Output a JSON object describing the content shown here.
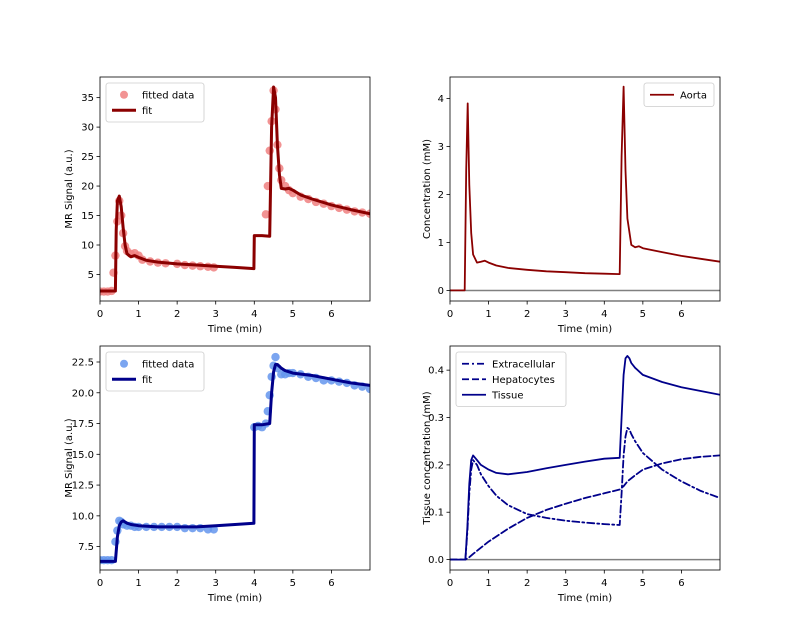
{
  "colors": {
    "aorta": "#8b0000",
    "signal_top_data": "#f08080",
    "signal_top_fit": "#8b0000",
    "signal_bottom_data": "#6495ed",
    "signal_bottom_fit": "#00008b",
    "tissue": "#00008b",
    "zero_line": "#808080",
    "axes": "#000000"
  },
  "chart_data": [
    {
      "type": "scatter",
      "panel": "top-left",
      "xlabel": "Time (min)",
      "ylabel": "MR Signal (a.u.)",
      "xlim": [
        0,
        7.0
      ],
      "ylim": [
        0.5,
        38.5
      ],
      "xticks": [
        0,
        1,
        2,
        3,
        4,
        5,
        6
      ],
      "yticks": [
        5,
        10,
        15,
        20,
        25,
        30,
        35
      ],
      "ytick_labels": [
        "5",
        "10",
        "15",
        "20",
        "25",
        "30",
        "35"
      ],
      "legend": "upper-left",
      "series": [
        {
          "name": "fitted data",
          "kind": "points",
          "color": "#f08080",
          "x": [
            0.0,
            0.1,
            0.2,
            0.3,
            0.35,
            0.4,
            0.45,
            0.5,
            0.55,
            0.6,
            0.65,
            0.7,
            0.8,
            0.9,
            1.0,
            1.1,
            1.3,
            1.5,
            1.7,
            2.0,
            2.2,
            2.4,
            2.6,
            2.8,
            2.95,
            4.3,
            4.35,
            4.4,
            4.45,
            4.5,
            4.55,
            4.6,
            4.65,
            4.7,
            4.8,
            4.9,
            5.0,
            5.2,
            5.4,
            5.6,
            5.8,
            6.0,
            6.2,
            6.4,
            6.6,
            6.8,
            7.0
          ],
          "y": [
            2.1,
            2.1,
            2.1,
            2.2,
            5.3,
            8.2,
            14.0,
            17.5,
            15.0,
            12.0,
            9.8,
            9.0,
            8.5,
            8.6,
            8.2,
            7.5,
            7.2,
            7.0,
            6.9,
            6.8,
            6.6,
            6.5,
            6.4,
            6.3,
            6.2,
            15.2,
            20.0,
            26.0,
            31.0,
            36.2,
            33.0,
            27.0,
            23.0,
            21.0,
            20.0,
            19.3,
            18.8,
            18.2,
            17.8,
            17.3,
            17.0,
            16.6,
            16.3,
            16.0,
            15.7,
            15.5,
            15.3
          ]
        },
        {
          "name": "fit",
          "kind": "line",
          "color": "#8b0000",
          "x": [
            0.0,
            0.4,
            0.42,
            0.45,
            0.5,
            0.55,
            0.6,
            0.65,
            0.7,
            0.8,
            0.9,
            1.0,
            1.2,
            1.5,
            2.0,
            2.5,
            3.0,
            3.5,
            3.99,
            4.0,
            4.2,
            4.4,
            4.45,
            4.5,
            4.55,
            4.6,
            4.65,
            4.7,
            4.8,
            4.9,
            5.0,
            5.2,
            5.5,
            6.0,
            6.5,
            7.0
          ],
          "y": [
            2.2,
            2.2,
            12.5,
            17.5,
            18.3,
            16.5,
            13.0,
            10.0,
            8.5,
            8.0,
            8.2,
            7.9,
            7.4,
            7.1,
            6.8,
            6.6,
            6.4,
            6.2,
            6.0,
            11.6,
            11.6,
            11.5,
            30.0,
            36.8,
            35.0,
            27.0,
            22.0,
            19.6,
            19.5,
            19.6,
            19.3,
            18.5,
            17.8,
            16.8,
            16.0,
            15.3
          ]
        }
      ]
    },
    {
      "type": "line",
      "panel": "top-right",
      "xlabel": "Time (min)",
      "ylabel": "Concentration (mM)",
      "xlim": [
        0,
        7.0
      ],
      "ylim": [
        -0.22,
        4.45
      ],
      "xticks": [
        0,
        1,
        2,
        3,
        4,
        5,
        6
      ],
      "yticks": [
        0,
        1,
        2,
        3,
        4
      ],
      "ytick_labels": [
        "0",
        "1",
        "2",
        "3",
        "4"
      ],
      "legend": "upper-right",
      "zero_line": true,
      "series": [
        {
          "name": "Aorta",
          "kind": "line",
          "color": "#8b0000",
          "x": [
            0.0,
            0.38,
            0.42,
            0.46,
            0.5,
            0.55,
            0.6,
            0.7,
            0.8,
            0.9,
            1.0,
            1.2,
            1.5,
            2.0,
            2.5,
            3.0,
            3.5,
            4.0,
            4.4,
            4.45,
            4.5,
            4.55,
            4.6,
            4.7,
            4.8,
            4.9,
            5.0,
            5.5,
            6.0,
            6.5,
            7.0
          ],
          "y": [
            0.0,
            0.0,
            2.5,
            3.9,
            2.2,
            1.2,
            0.75,
            0.58,
            0.6,
            0.62,
            0.58,
            0.52,
            0.47,
            0.43,
            0.4,
            0.38,
            0.36,
            0.35,
            0.34,
            2.8,
            4.25,
            2.5,
            1.5,
            0.95,
            0.9,
            0.92,
            0.88,
            0.8,
            0.72,
            0.66,
            0.6
          ]
        }
      ]
    },
    {
      "type": "scatter",
      "panel": "bottom-left",
      "xlabel": "Time (min)",
      "ylabel": "MR Signal (a.u.)",
      "xlim": [
        0,
        7.0
      ],
      "ylim": [
        5.6,
        23.8
      ],
      "xticks": [
        0,
        1,
        2,
        3,
        4,
        5,
        6
      ],
      "yticks": [
        7.5,
        10.0,
        12.5,
        15.0,
        17.5,
        20.0,
        22.5
      ],
      "ytick_labels": [
        "7.5",
        "10.0",
        "12.5",
        "15.0",
        "17.5",
        "20.0",
        "22.5"
      ],
      "legend": "upper-left",
      "series": [
        {
          "name": "fitted data",
          "kind": "points",
          "color": "#6495ed",
          "x": [
            0.0,
            0.1,
            0.2,
            0.3,
            0.4,
            0.45,
            0.5,
            0.55,
            0.6,
            0.7,
            0.8,
            0.9,
            1.0,
            1.2,
            1.4,
            1.6,
            1.8,
            2.0,
            2.2,
            2.4,
            2.6,
            2.8,
            2.95,
            4.0,
            4.1,
            4.2,
            4.3,
            4.35,
            4.4,
            4.45,
            4.5,
            4.55,
            4.6,
            4.7,
            4.8,
            4.9,
            5.0,
            5.2,
            5.4,
            5.6,
            5.8,
            6.0,
            6.2,
            6.4,
            6.6,
            6.8,
            7.0
          ],
          "y": [
            6.4,
            6.4,
            6.4,
            6.4,
            7.9,
            8.8,
            9.6,
            9.5,
            9.3,
            9.2,
            9.2,
            9.1,
            9.1,
            9.1,
            9.1,
            9.1,
            9.1,
            9.1,
            9.0,
            9.0,
            9.0,
            8.9,
            8.9,
            17.2,
            17.3,
            17.2,
            17.5,
            18.5,
            19.8,
            21.3,
            22.2,
            22.9,
            22.0,
            21.5,
            21.5,
            21.6,
            21.6,
            21.5,
            21.3,
            21.2,
            21.0,
            21.0,
            20.9,
            20.8,
            20.6,
            20.5,
            20.3
          ]
        },
        {
          "name": "fit",
          "kind": "line",
          "color": "#00008b",
          "x": [
            0.0,
            0.4,
            0.45,
            0.5,
            0.55,
            0.6,
            0.7,
            0.8,
            1.0,
            1.5,
            2.0,
            2.5,
            3.0,
            3.5,
            3.99,
            4.0,
            4.2,
            4.4,
            4.45,
            4.5,
            4.55,
            4.6,
            4.7,
            4.8,
            5.0,
            5.5,
            6.0,
            6.5,
            7.0
          ],
          "y": [
            6.3,
            6.3,
            8.3,
            9.2,
            9.5,
            9.6,
            9.4,
            9.3,
            9.2,
            9.1,
            9.1,
            9.1,
            9.2,
            9.3,
            9.4,
            17.4,
            17.4,
            17.5,
            20.0,
            21.7,
            22.3,
            22.3,
            22.0,
            21.8,
            21.6,
            21.4,
            21.1,
            20.8,
            20.6
          ]
        }
      ]
    },
    {
      "type": "line",
      "panel": "bottom-right",
      "xlabel": "Time (min)",
      "ylabel": "Tissue concentration (mM)",
      "xlim": [
        0,
        7.0
      ],
      "ylim": [
        -0.022,
        0.451
      ],
      "xticks": [
        0,
        1,
        2,
        3,
        4,
        5,
        6
      ],
      "yticks": [
        0.0,
        0.1,
        0.2,
        0.3,
        0.4
      ],
      "ytick_labels": [
        "0.0",
        "0.1",
        "0.2",
        "0.3",
        "0.4"
      ],
      "legend": "upper-left",
      "zero_line": true,
      "series": [
        {
          "name": "Extracellular",
          "kind": "line",
          "dash": "dashdot",
          "color": "#00008b",
          "x": [
            0.0,
            0.4,
            0.45,
            0.5,
            0.55,
            0.6,
            0.7,
            0.8,
            1.0,
            1.2,
            1.5,
            2.0,
            2.5,
            3.0,
            3.5,
            4.0,
            4.4,
            4.45,
            4.5,
            4.55,
            4.6,
            4.65,
            4.7,
            4.8,
            5.0,
            5.5,
            6.0,
            6.5,
            7.0
          ],
          "y": [
            0.0,
            0.0,
            0.06,
            0.14,
            0.19,
            0.21,
            0.2,
            0.18,
            0.155,
            0.135,
            0.115,
            0.096,
            0.088,
            0.082,
            0.078,
            0.075,
            0.073,
            0.14,
            0.22,
            0.26,
            0.278,
            0.275,
            0.265,
            0.25,
            0.225,
            0.19,
            0.165,
            0.145,
            0.13
          ]
        },
        {
          "name": "Hepatocytes",
          "kind": "line",
          "dash": "dashed",
          "color": "#00008b",
          "x": [
            0.0,
            0.4,
            0.5,
            0.6,
            0.8,
            1.0,
            1.5,
            2.0,
            2.5,
            3.0,
            3.5,
            4.0,
            4.4,
            4.5,
            4.6,
            4.8,
            5.0,
            5.5,
            6.0,
            6.5,
            7.0
          ],
          "y": [
            0.0,
            0.0,
            0.005,
            0.012,
            0.025,
            0.038,
            0.065,
            0.088,
            0.105,
            0.118,
            0.13,
            0.14,
            0.148,
            0.155,
            0.165,
            0.178,
            0.19,
            0.203,
            0.212,
            0.217,
            0.22
          ]
        },
        {
          "name": "Tissue",
          "kind": "line",
          "dash": "solid",
          "color": "#00008b",
          "x": [
            0.0,
            0.4,
            0.45,
            0.5,
            0.55,
            0.6,
            0.7,
            0.8,
            1.0,
            1.2,
            1.5,
            2.0,
            2.5,
            3.0,
            3.5,
            4.0,
            4.4,
            4.45,
            4.5,
            4.55,
            4.6,
            4.65,
            4.7,
            4.8,
            5.0,
            5.5,
            6.0,
            6.5,
            7.0
          ],
          "y": [
            0.0,
            0.0,
            0.07,
            0.16,
            0.21,
            0.22,
            0.21,
            0.2,
            0.19,
            0.183,
            0.18,
            0.185,
            0.193,
            0.2,
            0.207,
            0.213,
            0.215,
            0.3,
            0.39,
            0.425,
            0.43,
            0.425,
            0.415,
            0.405,
            0.39,
            0.375,
            0.364,
            0.356,
            0.348
          ]
        }
      ]
    }
  ]
}
